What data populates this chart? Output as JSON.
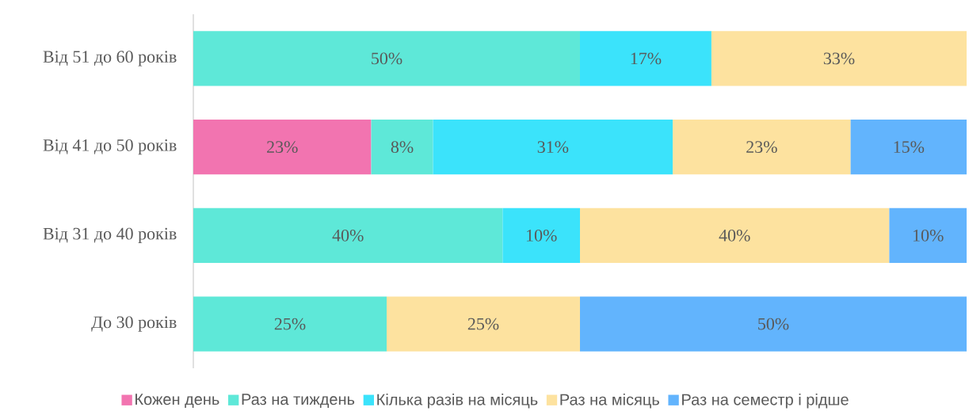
{
  "chart_data": {
    "type": "bar",
    "orientation": "horizontal",
    "stacked": true,
    "legend": "bottom",
    "tick_labels": "y",
    "xlim": [
      0,
      100
    ],
    "categories": [
      "Від 51 до 60 років",
      "Від 41 до 50 років",
      "Від 31 до 40 років",
      "До 30 років"
    ],
    "series": [
      {
        "name": "Кожен день",
        "color": "#f274b0",
        "values": [
          null,
          23,
          null,
          null
        ],
        "value_labels": [
          null,
          "23%",
          null,
          null
        ]
      },
      {
        "name": "Раз на тиждень",
        "color": "#5ee8d8",
        "values": [
          50,
          8,
          40,
          25
        ],
        "value_labels": [
          "50%",
          "8%",
          "40%",
          "25%"
        ]
      },
      {
        "name": "Кілька разів на місяць",
        "color": "#3be3fb",
        "values": [
          17,
          31,
          10,
          null
        ],
        "value_labels": [
          "17%",
          "31%",
          "10%",
          null
        ]
      },
      {
        "name": "Раз на місяць",
        "color": "#fde29f",
        "values": [
          33,
          23,
          40,
          25
        ],
        "value_labels": [
          "33%",
          "23%",
          "40%",
          "25%"
        ]
      },
      {
        "name": "Раз на семестр і рідше",
        "color": "#62b4fd",
        "values": [
          null,
          15,
          10,
          50
        ],
        "value_labels": [
          null,
          "15%",
          "10%",
          "50%"
        ]
      }
    ]
  }
}
